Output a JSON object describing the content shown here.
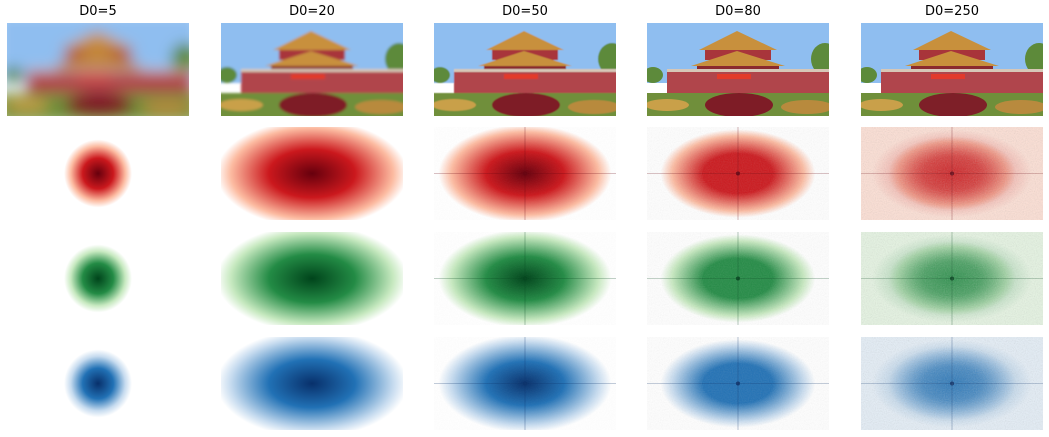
{
  "figure": {
    "columns": [
      {
        "title": "D0=5"
      },
      {
        "title": "D0=20"
      },
      {
        "title": "D0=50"
      },
      {
        "title": "D0=80"
      },
      {
        "title": "D0=250"
      }
    ],
    "rows": [
      {
        "kind": "photo",
        "colormap": "original"
      },
      {
        "kind": "spectrum",
        "colormap": "Reds"
      },
      {
        "kind": "spectrum",
        "colormap": "Greens"
      },
      {
        "kind": "spectrum",
        "colormap": "Blues"
      }
    ]
  },
  "colors": {
    "reds_dark": "#67000d",
    "reds_mid": "#cb181d",
    "reds_light": "#fcbba1",
    "greens_dark": "#00441b",
    "greens_mid": "#238b45",
    "greens_light": "#c7e9c0",
    "blues_dark": "#08306b",
    "blues_mid": "#2171b5",
    "blues_light": "#c6dbef",
    "sky": "#8fbef0",
    "wall": "#b0454c",
    "roof": "#c8903c",
    "foliage": "#5d8a3a"
  }
}
